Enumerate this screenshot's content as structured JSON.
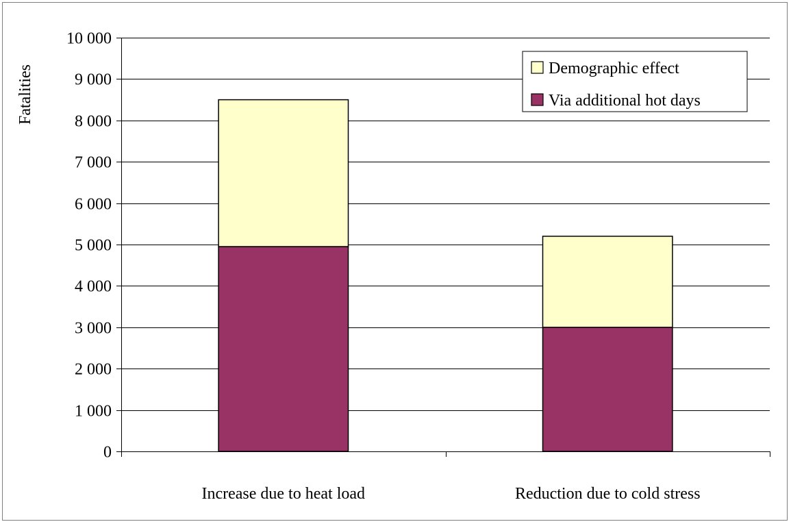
{
  "chart_data": {
    "type": "bar",
    "stacked": true,
    "title": "",
    "ylabel": "Fatalities",
    "xlabel": "",
    "categories": [
      "Increase due to heat load",
      "Reduction due to cold stress"
    ],
    "series": [
      {
        "name": "Via additional hot days",
        "values": [
          4950,
          3000
        ],
        "color": "#993366"
      },
      {
        "name": "Demographic effect",
        "values": [
          3550,
          2200
        ],
        "color": "#ffffcc"
      }
    ],
    "ylim": [
      0,
      10000
    ],
    "yticks": [
      0,
      1000,
      2000,
      3000,
      4000,
      5000,
      6000,
      7000,
      8000,
      9000,
      10000
    ],
    "ytick_labels": [
      "0",
      "1 000",
      "2 000",
      "3 000",
      "4 000",
      "5 000",
      "6 000",
      "7 000",
      "8 000",
      "9 000",
      "10 000"
    ],
    "grid": true,
    "legend_position": "top-right",
    "legend_order": [
      "Demographic effect",
      "Via additional hot days"
    ]
  }
}
